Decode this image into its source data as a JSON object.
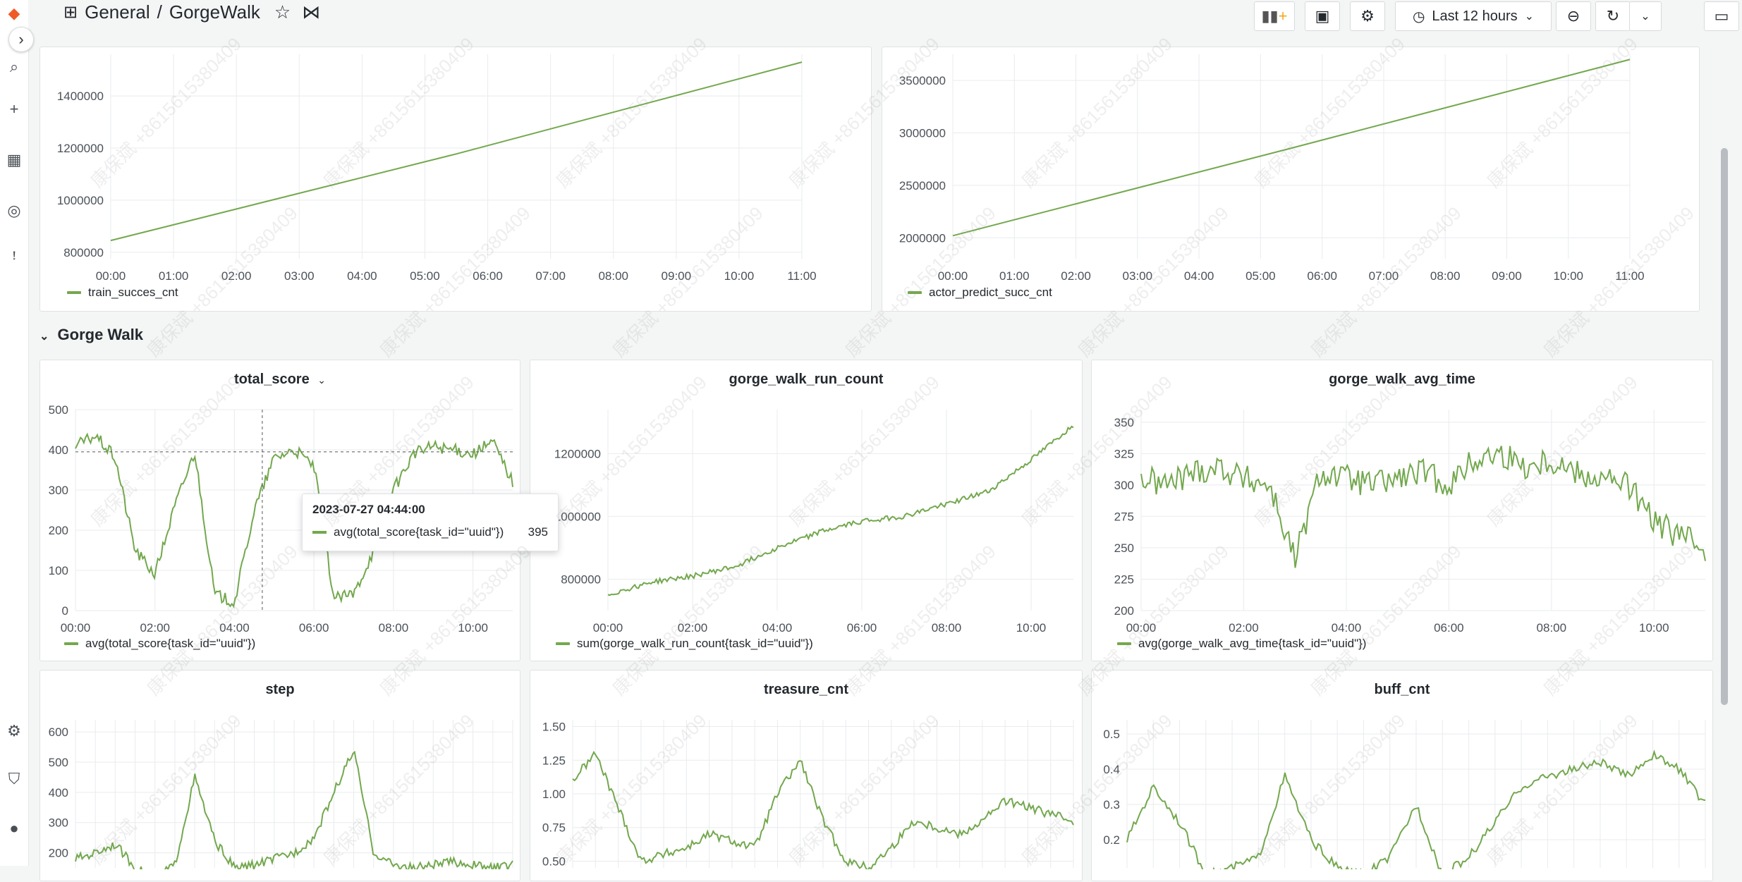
{
  "breadcrumb": {
    "folder": "General",
    "dashboard": "GorgeWalk"
  },
  "toolbar": {
    "time_range": "Last 12 hours"
  },
  "row_title": "Gorge Walk",
  "watermark_text": "康保斌 +8615615380409",
  "tooltip": {
    "time": "2023-07-27 04:44:00",
    "series": "avg(total_score{task_id=\"uuid\"})",
    "value": "395"
  },
  "icons": [
    "apps-icon",
    "star-icon",
    "share-icon",
    "add-panel-icon",
    "save-icon",
    "gear-icon",
    "clock-icon",
    "chevron-down-icon",
    "zoom-out-icon",
    "refresh-icon",
    "monitor-icon",
    "chevron-right-icon"
  ],
  "colors": {
    "series": "#73a84e",
    "background": "#f4f5f5",
    "panel": "#ffffff"
  },
  "chart_data": [
    {
      "id": "train_succ",
      "type": "line",
      "title": "",
      "x": [
        "00:00",
        "01:00",
        "02:00",
        "03:00",
        "04:00",
        "05:00",
        "06:00",
        "07:00",
        "08:00",
        "09:00",
        "10:00",
        "11:00"
      ],
      "series": [
        {
          "name": "train_succes_cnt",
          "values": [
            845000,
            910000,
            970000,
            1030000,
            1090000,
            1150000,
            1205000,
            1265000,
            1330000,
            1395000,
            1460000,
            1530000
          ]
        }
      ],
      "yticks": [
        "800000",
        "1000000",
        "1200000",
        "1400000"
      ],
      "ylim": [
        775000,
        1560000
      ],
      "grid": true,
      "legend": "bottom-left"
    },
    {
      "id": "actor_predict",
      "type": "line",
      "title": "",
      "x": [
        "00:00",
        "01:00",
        "02:00",
        "03:00",
        "04:00",
        "05:00",
        "06:00",
        "07:00",
        "08:00",
        "09:00",
        "10:00",
        "11:00"
      ],
      "series": [
        {
          "name": "actor_predict_succ_cnt",
          "values": [
            2020000,
            2175000,
            2330000,
            2480000,
            2630000,
            2780000,
            2930000,
            3085000,
            3235000,
            3385000,
            3540000,
            3700000
          ]
        }
      ],
      "yticks": [
        "2000000",
        "2500000",
        "3000000",
        "3500000"
      ],
      "ylim": [
        1800000,
        3750000
      ],
      "grid": true,
      "legend": "bottom-left"
    },
    {
      "id": "total_score",
      "type": "line",
      "title": "total_score",
      "x": [
        "00:00",
        "00:30",
        "01:00",
        "01:30",
        "02:00",
        "02:30",
        "03:00",
        "03:30",
        "04:00",
        "04:30",
        "05:00",
        "05:30",
        "06:00",
        "06:30",
        "07:00",
        "07:30",
        "08:00",
        "08:30",
        "09:00",
        "09:30",
        "10:00",
        "10:30",
        "11:00"
      ],
      "xticks": [
        "00:00",
        "02:00",
        "04:00",
        "06:00",
        "08:00",
        "10:00"
      ],
      "series": [
        {
          "name": "avg(total_score{task_id=\"uuid\"})",
          "values": [
            410,
            435,
            380,
            150,
            90,
            260,
            395,
            40,
            20,
            250,
            380,
            400,
            360,
            30,
            40,
            150,
            300,
            390,
            410,
            400,
            390,
            420,
            320
          ]
        }
      ],
      "yticks": [
        "0",
        "100",
        "200",
        "300",
        "400",
        "500"
      ],
      "ylim": [
        0,
        500
      ],
      "grid": true,
      "legend": "bottom-left"
    },
    {
      "id": "run_count",
      "type": "line",
      "title": "gorge_walk_run_count",
      "x": [
        "00:00",
        "01:00",
        "02:00",
        "03:00",
        "04:00",
        "05:00",
        "06:00",
        "07:00",
        "08:00",
        "09:00",
        "10:00",
        "11:00"
      ],
      "xticks": [
        "00:00",
        "02:00",
        "04:00",
        "06:00",
        "08:00",
        "10:00"
      ],
      "series": [
        {
          "name": "sum(gorge_walk_run_count{task_id=\"uuid\"})",
          "values": [
            750000,
            790000,
            810000,
            840000,
            900000,
            950000,
            985000,
            1000000,
            1040000,
            1080000,
            1180000,
            1290000
          ]
        }
      ],
      "yticks": [
        "800000",
        "1000000",
        "1200000"
      ],
      "ylim": [
        700000,
        1340000
      ],
      "grid": true,
      "legend": "bottom-left"
    },
    {
      "id": "avg_time",
      "type": "line",
      "title": "gorge_walk_avg_time",
      "x": [
        "00:00",
        "00:30",
        "01:00",
        "01:30",
        "02:00",
        "02:30",
        "03:00",
        "03:30",
        "04:00",
        "04:30",
        "05:00",
        "05:30",
        "06:00",
        "06:30",
        "07:00",
        "07:30",
        "08:00",
        "08:30",
        "09:00",
        "09:30",
        "10:00",
        "10:30",
        "11:00"
      ],
      "xticks": [
        "00:00",
        "02:00",
        "04:00",
        "06:00",
        "08:00",
        "10:00"
      ],
      "series": [
        {
          "name": "avg(gorge_walk_avg_time{task_id=\"uuid\"})",
          "values": [
            305,
            300,
            310,
            315,
            305,
            300,
            240,
            310,
            305,
            300,
            305,
            310,
            300,
            320,
            325,
            315,
            320,
            310,
            305,
            300,
            270,
            260,
            250
          ]
        }
      ],
      "yticks": [
        "200",
        "225",
        "250",
        "275",
        "300",
        "325",
        "350"
      ],
      "ylim": [
        200,
        360
      ],
      "grid": true,
      "legend": "bottom-left"
    },
    {
      "id": "step",
      "type": "line",
      "title": "step",
      "x": [
        "00:00",
        "00:30",
        "01:00",
        "01:30",
        "02:00",
        "02:30",
        "03:00",
        "03:30",
        "04:00",
        "04:30",
        "05:00",
        "05:30",
        "06:00",
        "06:30",
        "07:00",
        "07:30",
        "08:00",
        "08:30",
        "09:00",
        "09:30",
        "10:00",
        "10:30",
        "11:00"
      ],
      "series": [
        {
          "name": "step",
          "values": [
            180,
            200,
            230,
            150,
            120,
            160,
            450,
            240,
            150,
            160,
            180,
            200,
            250,
            400,
            540,
            200,
            160,
            150,
            160,
            170,
            160,
            150,
            160
          ]
        }
      ],
      "yticks": [
        "200",
        "300",
        "400",
        "500",
        "600"
      ],
      "ylim": [
        150,
        640
      ],
      "grid": true,
      "legend": "none"
    },
    {
      "id": "treasure",
      "type": "line",
      "title": "treasure_cnt",
      "x": [
        "00:00",
        "00:30",
        "01:00",
        "01:30",
        "02:00",
        "02:30",
        "03:00",
        "03:30",
        "04:00",
        "04:30",
        "05:00",
        "05:30",
        "06:00",
        "06:30",
        "07:00",
        "07:30",
        "08:00",
        "08:30",
        "09:00",
        "09:30",
        "10:00",
        "10:30",
        "11:00"
      ],
      "series": [
        {
          "name": "treasure_cnt",
          "values": [
            1.1,
            1.3,
            0.9,
            0.5,
            0.55,
            0.6,
            0.7,
            0.65,
            0.6,
            1.0,
            1.25,
            0.8,
            0.5,
            0.45,
            0.6,
            0.8,
            0.75,
            0.7,
            0.8,
            0.95,
            0.9,
            0.85,
            0.8
          ]
        }
      ],
      "yticks": [
        "0.50",
        "0.75",
        "1.00",
        "1.25",
        "1.50"
      ],
      "ylim": [
        0.45,
        1.55
      ],
      "grid": true,
      "legend": "none"
    },
    {
      "id": "buff",
      "type": "line",
      "title": "buff_cnt",
      "x": [
        "00:00",
        "00:30",
        "01:00",
        "01:30",
        "02:00",
        "02:30",
        "03:00",
        "03:30",
        "04:00",
        "04:30",
        "05:00",
        "05:30",
        "06:00",
        "06:30",
        "07:00",
        "07:30",
        "08:00",
        "08:30",
        "09:00",
        "09:30",
        "10:00",
        "10:30",
        "11:00"
      ],
      "series": [
        {
          "name": "buff_cnt",
          "values": [
            0.2,
            0.35,
            0.25,
            0.1,
            0.12,
            0.15,
            0.38,
            0.2,
            0.12,
            0.1,
            0.15,
            0.3,
            0.1,
            0.15,
            0.25,
            0.35,
            0.38,
            0.4,
            0.42,
            0.38,
            0.44,
            0.4,
            0.3
          ]
        }
      ],
      "yticks": [
        "0.2",
        "0.3",
        "0.4",
        "0.5"
      ],
      "ylim": [
        0.12,
        0.54
      ],
      "grid": true,
      "legend": "none"
    }
  ]
}
